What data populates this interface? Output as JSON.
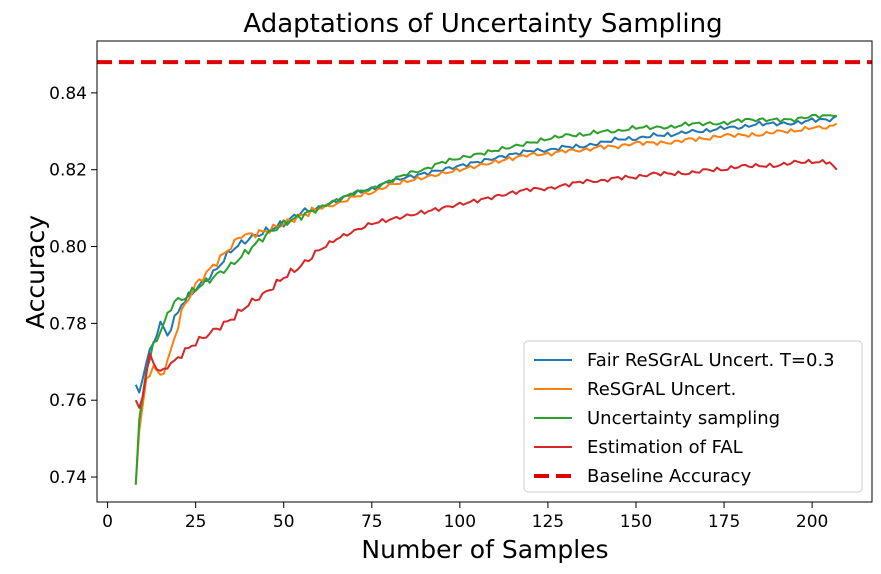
{
  "chart_data": {
    "type": "line",
    "title": "Adaptations of Uncertainty Sampling",
    "xlabel": "Number of Samples",
    "ylabel": "Accuracy",
    "xlim": [
      -3,
      217
    ],
    "ylim": [
      0.7335,
      0.8535
    ],
    "xticks": [
      0,
      25,
      50,
      75,
      100,
      125,
      150,
      175,
      200
    ],
    "yticks": [
      0.74,
      0.76,
      0.78,
      0.8,
      0.82,
      0.84
    ],
    "ytick_labels": [
      "0.74",
      "0.76",
      "0.78",
      "0.80",
      "0.82",
      "0.84"
    ],
    "grid": false,
    "legend_position": "lower-right",
    "baseline": {
      "name": "Baseline Accuracy",
      "value": 0.848,
      "color": "#e00000",
      "style": "dashed"
    },
    "series": [
      {
        "name": "Fair ReSGrAL Uncert. T=0.3",
        "color": "#1f77b4",
        "points": [
          [
            8,
            0.764
          ],
          [
            9,
            0.762
          ],
          [
            11,
            0.77
          ],
          [
            13,
            0.775
          ],
          [
            15,
            0.78
          ],
          [
            17,
            0.777
          ],
          [
            19,
            0.781
          ],
          [
            21,
            0.785
          ],
          [
            25,
            0.789
          ],
          [
            30,
            0.793
          ],
          [
            35,
            0.799
          ],
          [
            40,
            0.802
          ],
          [
            45,
            0.804
          ],
          [
            50,
            0.806
          ],
          [
            55,
            0.809
          ],
          [
            60,
            0.81
          ],
          [
            65,
            0.812
          ],
          [
            70,
            0.814
          ],
          [
            75,
            0.815
          ],
          [
            80,
            0.817
          ],
          [
            85,
            0.818
          ],
          [
            90,
            0.819
          ],
          [
            95,
            0.82
          ],
          [
            100,
            0.821
          ],
          [
            105,
            0.822
          ],
          [
            110,
            0.823
          ],
          [
            115,
            0.824
          ],
          [
            120,
            0.825
          ],
          [
            125,
            0.825
          ],
          [
            130,
            0.826
          ],
          [
            135,
            0.826
          ],
          [
            140,
            0.827
          ],
          [
            145,
            0.828
          ],
          [
            150,
            0.828
          ],
          [
            155,
            0.829
          ],
          [
            160,
            0.829
          ],
          [
            165,
            0.83
          ],
          [
            170,
            0.83
          ],
          [
            175,
            0.831
          ],
          [
            180,
            0.831
          ],
          [
            185,
            0.832
          ],
          [
            190,
            0.832
          ],
          [
            195,
            0.832
          ],
          [
            200,
            0.833
          ],
          [
            205,
            0.833
          ],
          [
            207,
            0.834
          ]
        ]
      },
      {
        "name": "ReSGrAL Uncert.",
        "color": "#ff7f0e",
        "points": [
          [
            8,
            0.738
          ],
          [
            9,
            0.752
          ],
          [
            11,
            0.765
          ],
          [
            13,
            0.769
          ],
          [
            15,
            0.766
          ],
          [
            17,
            0.77
          ],
          [
            19,
            0.776
          ],
          [
            21,
            0.783
          ],
          [
            25,
            0.79
          ],
          [
            30,
            0.795
          ],
          [
            35,
            0.8
          ],
          [
            38,
            0.803
          ],
          [
            40,
            0.803
          ],
          [
            45,
            0.804
          ],
          [
            50,
            0.806
          ],
          [
            55,
            0.808
          ],
          [
            60,
            0.81
          ],
          [
            65,
            0.811
          ],
          [
            70,
            0.813
          ],
          [
            75,
            0.814
          ],
          [
            80,
            0.816
          ],
          [
            85,
            0.817
          ],
          [
            90,
            0.818
          ],
          [
            95,
            0.819
          ],
          [
            100,
            0.82
          ],
          [
            105,
            0.821
          ],
          [
            110,
            0.822
          ],
          [
            115,
            0.823
          ],
          [
            120,
            0.824
          ],
          [
            125,
            0.824
          ],
          [
            130,
            0.825
          ],
          [
            135,
            0.825
          ],
          [
            140,
            0.826
          ],
          [
            145,
            0.826
          ],
          [
            150,
            0.827
          ],
          [
            155,
            0.827
          ],
          [
            160,
            0.827
          ],
          [
            165,
            0.828
          ],
          [
            170,
            0.828
          ],
          [
            175,
            0.829
          ],
          [
            180,
            0.829
          ],
          [
            185,
            0.829
          ],
          [
            190,
            0.83
          ],
          [
            195,
            0.83
          ],
          [
            200,
            0.831
          ],
          [
            205,
            0.831
          ],
          [
            207,
            0.832
          ]
        ]
      },
      {
        "name": "Uncertainty sampling",
        "color": "#2ca02c",
        "points": [
          [
            8,
            0.738
          ],
          [
            9,
            0.755
          ],
          [
            11,
            0.768
          ],
          [
            13,
            0.774
          ],
          [
            15,
            0.778
          ],
          [
            17,
            0.782
          ],
          [
            19,
            0.786
          ],
          [
            21,
            0.786
          ],
          [
            25,
            0.789
          ],
          [
            30,
            0.792
          ],
          [
            35,
            0.795
          ],
          [
            40,
            0.799
          ],
          [
            45,
            0.803
          ],
          [
            50,
            0.806
          ],
          [
            55,
            0.808
          ],
          [
            60,
            0.81
          ],
          [
            65,
            0.812
          ],
          [
            70,
            0.814
          ],
          [
            75,
            0.815
          ],
          [
            80,
            0.817
          ],
          [
            85,
            0.819
          ],
          [
            90,
            0.82
          ],
          [
            95,
            0.822
          ],
          [
            100,
            0.823
          ],
          [
            105,
            0.824
          ],
          [
            110,
            0.825
          ],
          [
            115,
            0.826
          ],
          [
            120,
            0.827
          ],
          [
            125,
            0.828
          ],
          [
            130,
            0.829
          ],
          [
            135,
            0.829
          ],
          [
            140,
            0.83
          ],
          [
            145,
            0.83
          ],
          [
            150,
            0.831
          ],
          [
            155,
            0.831
          ],
          [
            160,
            0.831
          ],
          [
            165,
            0.832
          ],
          [
            170,
            0.832
          ],
          [
            175,
            0.832
          ],
          [
            180,
            0.833
          ],
          [
            185,
            0.833
          ],
          [
            190,
            0.833
          ],
          [
            195,
            0.833
          ],
          [
            200,
            0.834
          ],
          [
            205,
            0.834
          ],
          [
            207,
            0.834
          ]
        ]
      },
      {
        "name": "Estimation of FAL",
        "color": "#d62728",
        "points": [
          [
            8,
            0.76
          ],
          [
            9,
            0.758
          ],
          [
            11,
            0.766
          ],
          [
            12,
            0.772
          ],
          [
            13,
            0.77
          ],
          [
            15,
            0.767
          ],
          [
            17,
            0.769
          ],
          [
            19,
            0.77
          ],
          [
            21,
            0.772
          ],
          [
            25,
            0.775
          ],
          [
            30,
            0.778
          ],
          [
            35,
            0.781
          ],
          [
            40,
            0.785
          ],
          [
            45,
            0.788
          ],
          [
            50,
            0.792
          ],
          [
            55,
            0.795
          ],
          [
            60,
            0.799
          ],
          [
            65,
            0.802
          ],
          [
            70,
            0.804
          ],
          [
            75,
            0.806
          ],
          [
            80,
            0.807
          ],
          [
            85,
            0.808
          ],
          [
            90,
            0.809
          ],
          [
            95,
            0.81
          ],
          [
            100,
            0.811
          ],
          [
            105,
            0.812
          ],
          [
            110,
            0.813
          ],
          [
            115,
            0.814
          ],
          [
            120,
            0.815
          ],
          [
            125,
            0.815
          ],
          [
            130,
            0.816
          ],
          [
            135,
            0.817
          ],
          [
            140,
            0.817
          ],
          [
            145,
            0.818
          ],
          [
            150,
            0.818
          ],
          [
            155,
            0.819
          ],
          [
            160,
            0.819
          ],
          [
            165,
            0.819
          ],
          [
            170,
            0.82
          ],
          [
            175,
            0.82
          ],
          [
            180,
            0.821
          ],
          [
            185,
            0.821
          ],
          [
            190,
            0.821
          ],
          [
            195,
            0.822
          ],
          [
            200,
            0.822
          ],
          [
            205,
            0.822
          ],
          [
            207,
            0.82
          ]
        ]
      }
    ]
  }
}
